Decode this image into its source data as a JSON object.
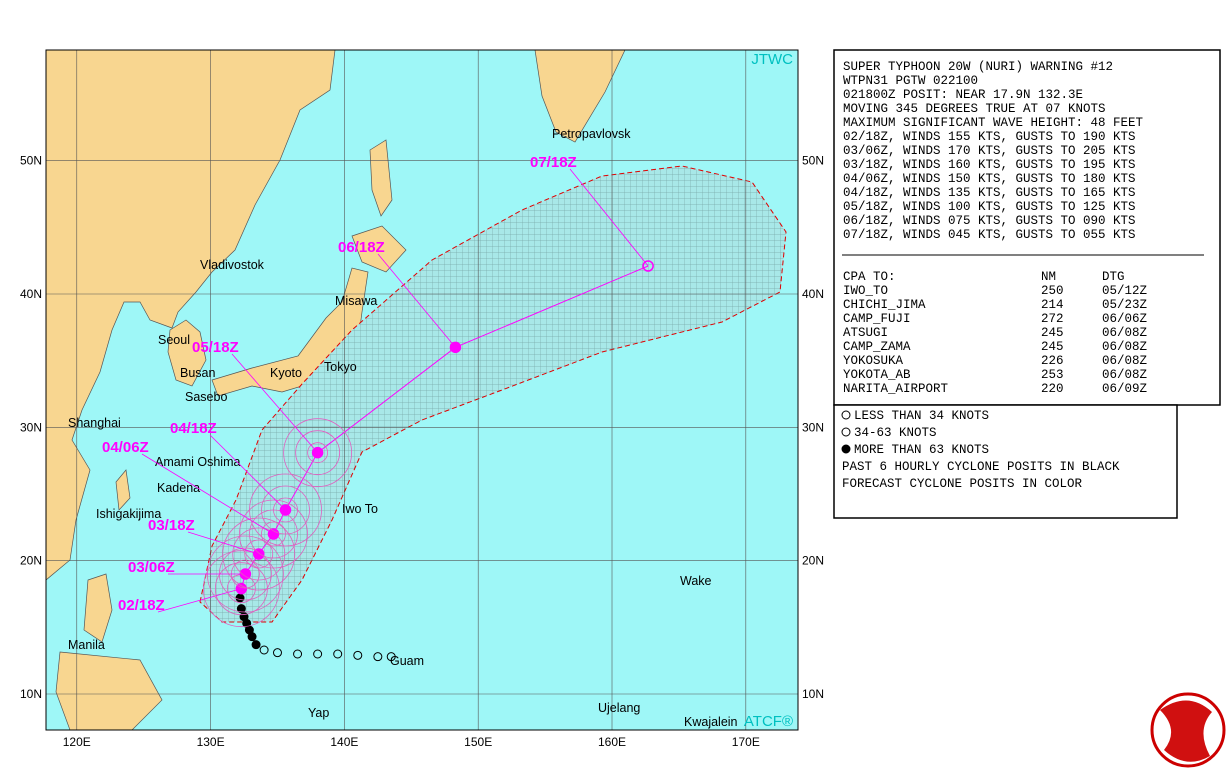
{
  "chart_data": {
    "type": "track_map",
    "source_label": "JTWC",
    "credit_label": "ATCF®",
    "xlim": [
      117.7,
      173.9
    ],
    "ylim": [
      7.3,
      58.3
    ],
    "xticks": [
      {
        "value": 120,
        "label": "120E"
      },
      {
        "value": 130,
        "label": "130E"
      },
      {
        "value": 140,
        "label": "140E"
      },
      {
        "value": 150,
        "label": "150E"
      },
      {
        "value": 160,
        "label": "160E"
      },
      {
        "value": 170,
        "label": "170E"
      }
    ],
    "yticks": [
      {
        "value": 10,
        "label": "10N"
      },
      {
        "value": 20,
        "label": "20N"
      },
      {
        "value": 30,
        "label": "30N"
      },
      {
        "value": 40,
        "label": "40N"
      },
      {
        "value": 50,
        "label": "50N"
      }
    ],
    "forecast": {
      "color": "#ff00ff",
      "labels": [
        "02/18Z",
        "03/06Z",
        "03/18Z",
        "04/06Z",
        "04/18Z",
        "05/18Z",
        "06/18Z",
        "07/18Z"
      ],
      "lon": [
        132.3,
        132.6,
        133.6,
        134.7,
        135.6,
        138.0,
        148.3,
        162.7
      ],
      "lat": [
        17.9,
        19.0,
        20.5,
        22.0,
        23.8,
        28.1,
        36.0,
        42.1
      ]
    },
    "past_track": {
      "lon": [
        132.2,
        132.3,
        132.5,
        132.7,
        132.9,
        133.1,
        133.4,
        134.0,
        135.0,
        136.5,
        138.0,
        139.5,
        141.0,
        142.5,
        143.5
      ],
      "lat": [
        17.2,
        16.4,
        15.8,
        15.3,
        14.8,
        14.3,
        13.7,
        13.3,
        13.1,
        13.0,
        13.0,
        13.0,
        12.9,
        12.8,
        12.8
      ]
    },
    "places": [
      "Petropavlovsk",
      "Vladivostok",
      "Misawa",
      "Seoul",
      "Busan",
      "Kyoto",
      "Tokyo",
      "Sasebo",
      "Shanghai",
      "Amami Oshima",
      "Kadena",
      "Iwo To",
      "Ishigakijima",
      "Wake",
      "Manila",
      "Guam",
      "Yap",
      "Ujelang",
      "Kwajalein"
    ]
  },
  "warning": {
    "lines": [
      "SUPER TYPHOON 20W (NURI) WARNING #12",
      "WTPN31 PGTW 022100",
      "021800Z POSIT: NEAR 17.9N 132.3E",
      "MOVING 345 DEGREES TRUE AT 07 KNOTS",
      "MAXIMUM SIGNIFICANT WAVE HEIGHT: 48 FEET",
      "02/18Z, WINDS 155 KTS, GUSTS TO 190 KTS",
      "03/06Z, WINDS 170 KTS, GUSTS TO 205 KTS",
      "03/18Z, WINDS 160 KTS, GUSTS TO 195 KTS",
      "04/06Z, WINDS 150 KTS, GUSTS TO 180 KTS",
      "04/18Z, WINDS 135 KTS, GUSTS TO 165 KTS",
      "05/18Z, WINDS 100 KTS, GUSTS TO 125 KTS",
      "06/18Z, WINDS 075 KTS, GUSTS TO 090 KTS",
      "07/18Z, WINDS 045 KTS, GUSTS TO 055 KTS"
    ],
    "cpa_header": [
      "CPA TO:",
      "NM",
      "DTG"
    ],
    "cpa_rows": [
      [
        "IWO_TO",
        "250",
        "05/12Z"
      ],
      [
        "CHICHI_JIMA",
        "214",
        "05/23Z"
      ],
      [
        "CAMP_FUJI",
        "272",
        "06/06Z"
      ],
      [
        "ATSUGI",
        "245",
        "06/08Z"
      ],
      [
        "CAMP_ZAMA",
        "245",
        "06/08Z"
      ],
      [
        "YOKOSUKA",
        "226",
        "06/08Z"
      ],
      [
        "YOKOTA_AB",
        "253",
        "06/08Z"
      ],
      [
        "NARITA_AIRPORT",
        "220",
        "06/09Z"
      ]
    ]
  },
  "legend": {
    "lines": [
      "LESS THAN 34 KNOTS",
      "34-63 KNOTS",
      "MORE THAN 63 KNOTS",
      "PAST 6 HOURLY CYCLONE POSITS IN BLACK",
      "FORECAST CYCLONE POSITS IN COLOR"
    ]
  }
}
